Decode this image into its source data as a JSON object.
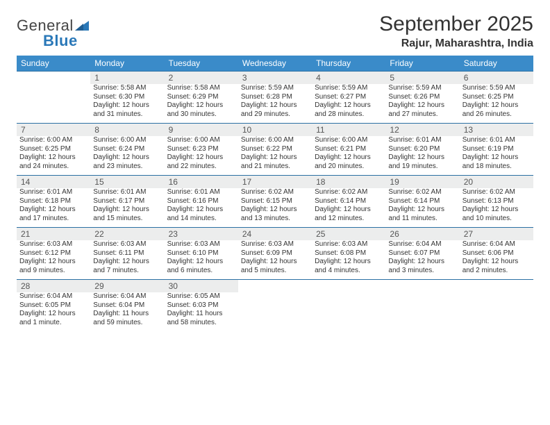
{
  "logo": {
    "word1": "General",
    "word2": "Blue"
  },
  "title": "September 2025",
  "location": "Rajur, Maharashtra, India",
  "colors": {
    "header_bg": "#3a8bc9",
    "header_text": "#ffffff",
    "daynum_bg": "#eceded",
    "rule": "#2a6fa3",
    "body_text": "#333333",
    "logo_gray": "#555555",
    "logo_blue": "#2a78b8"
  },
  "typography": {
    "title_fontsize": 30,
    "location_fontsize": 16,
    "header_fontsize": 12,
    "daynum_fontsize": 12,
    "body_fontsize": 10
  },
  "day_headers": [
    "Sunday",
    "Monday",
    "Tuesday",
    "Wednesday",
    "Thursday",
    "Friday",
    "Saturday"
  ],
  "weeks": [
    [
      null,
      {
        "n": "1",
        "sunrise": "5:58 AM",
        "sunset": "6:30 PM",
        "daylight": "12 hours and 31 minutes."
      },
      {
        "n": "2",
        "sunrise": "5:58 AM",
        "sunset": "6:29 PM",
        "daylight": "12 hours and 30 minutes."
      },
      {
        "n": "3",
        "sunrise": "5:59 AM",
        "sunset": "6:28 PM",
        "daylight": "12 hours and 29 minutes."
      },
      {
        "n": "4",
        "sunrise": "5:59 AM",
        "sunset": "6:27 PM",
        "daylight": "12 hours and 28 minutes."
      },
      {
        "n": "5",
        "sunrise": "5:59 AM",
        "sunset": "6:26 PM",
        "daylight": "12 hours and 27 minutes."
      },
      {
        "n": "6",
        "sunrise": "5:59 AM",
        "sunset": "6:25 PM",
        "daylight": "12 hours and 26 minutes."
      }
    ],
    [
      {
        "n": "7",
        "sunrise": "6:00 AM",
        "sunset": "6:25 PM",
        "daylight": "12 hours and 24 minutes."
      },
      {
        "n": "8",
        "sunrise": "6:00 AM",
        "sunset": "6:24 PM",
        "daylight": "12 hours and 23 minutes."
      },
      {
        "n": "9",
        "sunrise": "6:00 AM",
        "sunset": "6:23 PM",
        "daylight": "12 hours and 22 minutes."
      },
      {
        "n": "10",
        "sunrise": "6:00 AM",
        "sunset": "6:22 PM",
        "daylight": "12 hours and 21 minutes."
      },
      {
        "n": "11",
        "sunrise": "6:00 AM",
        "sunset": "6:21 PM",
        "daylight": "12 hours and 20 minutes."
      },
      {
        "n": "12",
        "sunrise": "6:01 AM",
        "sunset": "6:20 PM",
        "daylight": "12 hours and 19 minutes."
      },
      {
        "n": "13",
        "sunrise": "6:01 AM",
        "sunset": "6:19 PM",
        "daylight": "12 hours and 18 minutes."
      }
    ],
    [
      {
        "n": "14",
        "sunrise": "6:01 AM",
        "sunset": "6:18 PM",
        "daylight": "12 hours and 17 minutes."
      },
      {
        "n": "15",
        "sunrise": "6:01 AM",
        "sunset": "6:17 PM",
        "daylight": "12 hours and 15 minutes."
      },
      {
        "n": "16",
        "sunrise": "6:01 AM",
        "sunset": "6:16 PM",
        "daylight": "12 hours and 14 minutes."
      },
      {
        "n": "17",
        "sunrise": "6:02 AM",
        "sunset": "6:15 PM",
        "daylight": "12 hours and 13 minutes."
      },
      {
        "n": "18",
        "sunrise": "6:02 AM",
        "sunset": "6:14 PM",
        "daylight": "12 hours and 12 minutes."
      },
      {
        "n": "19",
        "sunrise": "6:02 AM",
        "sunset": "6:14 PM",
        "daylight": "12 hours and 11 minutes."
      },
      {
        "n": "20",
        "sunrise": "6:02 AM",
        "sunset": "6:13 PM",
        "daylight": "12 hours and 10 minutes."
      }
    ],
    [
      {
        "n": "21",
        "sunrise": "6:03 AM",
        "sunset": "6:12 PM",
        "daylight": "12 hours and 9 minutes."
      },
      {
        "n": "22",
        "sunrise": "6:03 AM",
        "sunset": "6:11 PM",
        "daylight": "12 hours and 7 minutes."
      },
      {
        "n": "23",
        "sunrise": "6:03 AM",
        "sunset": "6:10 PM",
        "daylight": "12 hours and 6 minutes."
      },
      {
        "n": "24",
        "sunrise": "6:03 AM",
        "sunset": "6:09 PM",
        "daylight": "12 hours and 5 minutes."
      },
      {
        "n": "25",
        "sunrise": "6:03 AM",
        "sunset": "6:08 PM",
        "daylight": "12 hours and 4 minutes."
      },
      {
        "n": "26",
        "sunrise": "6:04 AM",
        "sunset": "6:07 PM",
        "daylight": "12 hours and 3 minutes."
      },
      {
        "n": "27",
        "sunrise": "6:04 AM",
        "sunset": "6:06 PM",
        "daylight": "12 hours and 2 minutes."
      }
    ],
    [
      {
        "n": "28",
        "sunrise": "6:04 AM",
        "sunset": "6:05 PM",
        "daylight": "12 hours and 1 minute."
      },
      {
        "n": "29",
        "sunrise": "6:04 AM",
        "sunset": "6:04 PM",
        "daylight": "11 hours and 59 minutes."
      },
      {
        "n": "30",
        "sunrise": "6:05 AM",
        "sunset": "6:03 PM",
        "daylight": "11 hours and 58 minutes."
      },
      null,
      null,
      null,
      null
    ]
  ],
  "labels": {
    "sunrise": "Sunrise:",
    "sunset": "Sunset:",
    "daylight": "Daylight:"
  }
}
